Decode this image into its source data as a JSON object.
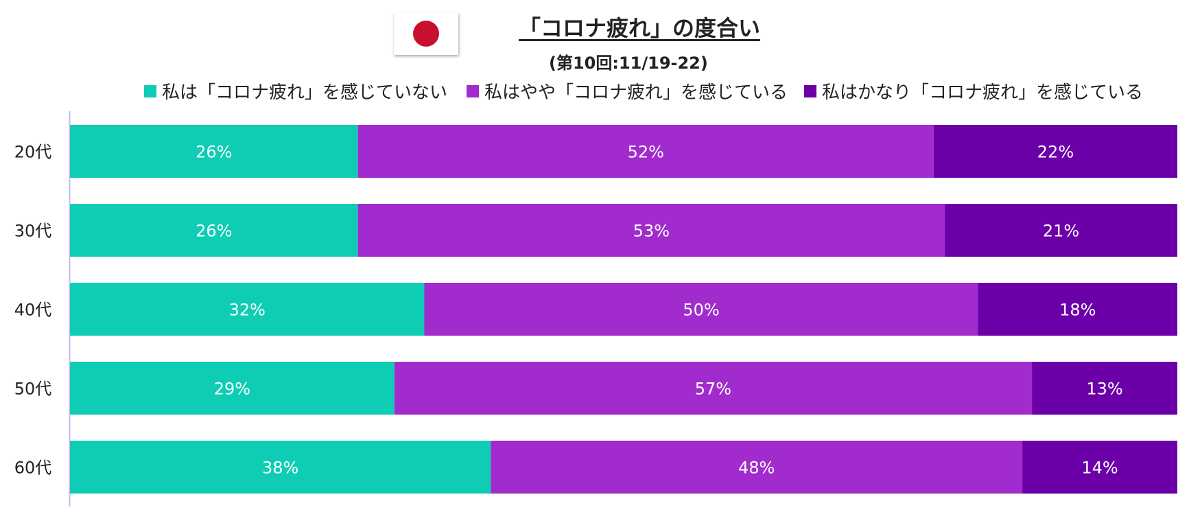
{
  "header": {
    "title": "「コロナ疲れ」の度合い",
    "subtitle": "(第10回:11/19-22)"
  },
  "chart_data": {
    "type": "bar",
    "orientation": "horizontal",
    "stacked": true,
    "categories": [
      "20代",
      "30代",
      "40代",
      "50代",
      "60代"
    ],
    "series": [
      {
        "name": "私は「コロナ疲れ」を感じていない",
        "color": "#0ecdb4",
        "values": [
          26,
          26,
          32,
          29,
          38
        ],
        "labels": [
          "26%",
          "26%",
          "32%",
          "29%",
          "38%"
        ]
      },
      {
        "name": "私はやや「コロナ疲れ」を感じている",
        "color": "#a12bcc",
        "values": [
          52,
          53,
          50,
          57,
          48
        ],
        "labels": [
          "52%",
          "53%",
          "50%",
          "57%",
          "48%"
        ]
      },
      {
        "name": "私はかなり「コロナ疲れ」を感じている",
        "color": "#6b00a8",
        "values": [
          22,
          21,
          18,
          13,
          14
        ],
        "labels": [
          "22%",
          "21%",
          "18%",
          "13%",
          "14%"
        ]
      }
    ],
    "xlim": [
      0,
      100
    ],
    "legend_position": "top",
    "grid": false
  },
  "colors": {
    "axis": "#c8b8ee",
    "label_text": "#ffffff",
    "flag_red": "#c8102e"
  }
}
